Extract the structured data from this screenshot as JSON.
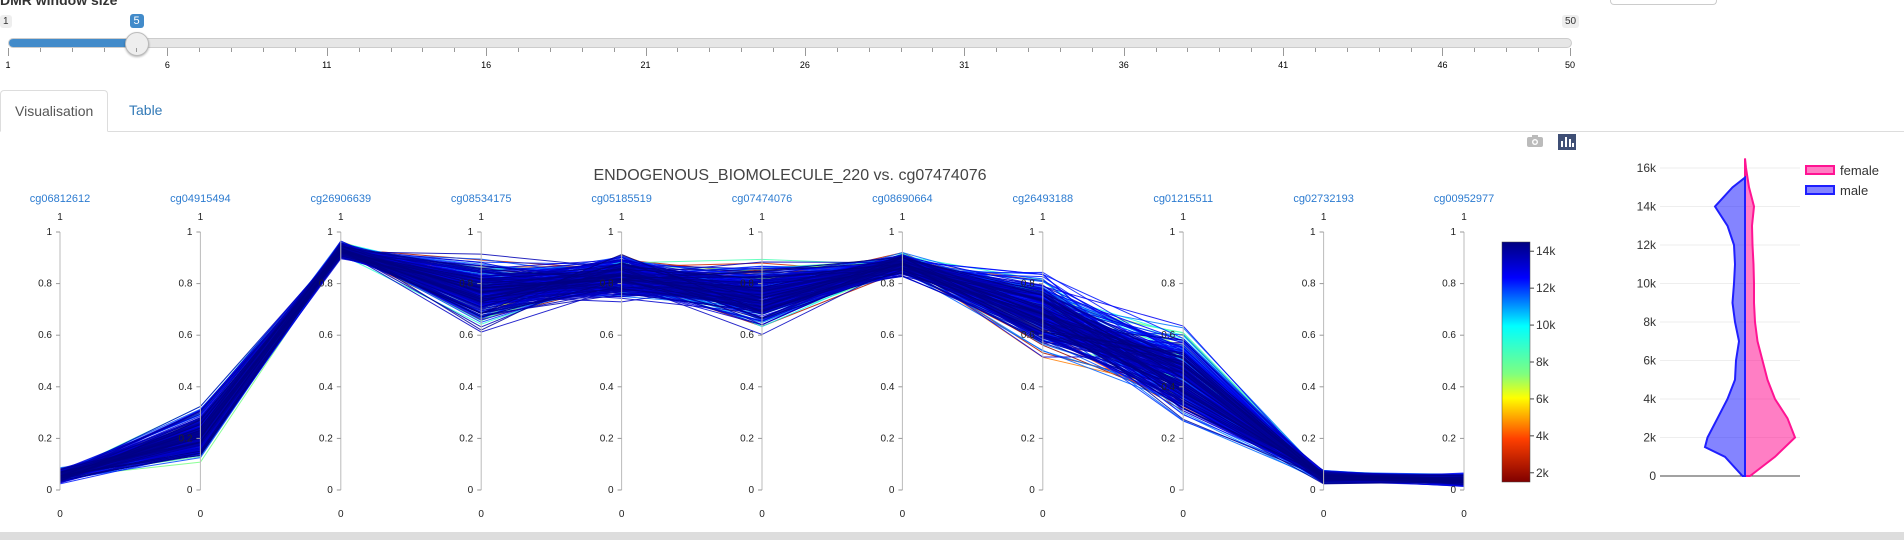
{
  "slider": {
    "label": "DMR window size",
    "min_label": "1",
    "max_label": "50",
    "value": 5,
    "min": 1,
    "max": 50,
    "ticks": [
      "1",
      "6",
      "11",
      "16",
      "21",
      "26",
      "31",
      "36",
      "41",
      "46",
      "50"
    ]
  },
  "tabs": [
    {
      "label": "Visualisation",
      "active": true
    },
    {
      "label": "Table",
      "active": false
    }
  ],
  "modebar": {
    "camera_icon": "camera-icon",
    "plotly_icon": "bar-chart-icon"
  },
  "colors": {
    "accent": "#428bca",
    "tab_link": "#337ab7",
    "female": "#ff1493",
    "male": "#1f1fff"
  },
  "chart_data": [
    {
      "type": "parcoords",
      "title": "ENDOGENOUS_BIOMOLECULE_220 vs. cg07474076",
      "dimensions": [
        "cg06812612",
        "cg04915494",
        "cg26906639",
        "cg08534175",
        "cg05185519",
        "cg07474076",
        "cg08690664",
        "cg26493188",
        "cg01215511",
        "cg02732193",
        "cg00952977"
      ],
      "axis_range": [
        0,
        1
      ],
      "axis_ticks": [
        "0",
        "0.2",
        "0.4",
        "0.6",
        "0.8",
        "1"
      ],
      "axis_top_labels": [
        "1",
        "1",
        "1",
        "1",
        "1",
        "1",
        "1",
        "1",
        "1",
        "1",
        "1"
      ],
      "axis_bottom_labels": [
        "0",
        "0",
        "0",
        "0",
        "0",
        "0",
        "0",
        "0",
        "0",
        "0",
        "0"
      ],
      "typical_profile": [
        0.06,
        0.22,
        0.95,
        0.8,
        0.82,
        0.8,
        0.9,
        0.65,
        0.45,
        0.04,
        0.03
      ],
      "profile_low": [
        0.02,
        0.09,
        0.89,
        0.6,
        0.72,
        0.58,
        0.82,
        0.48,
        0.22,
        0.02,
        0.01
      ],
      "profile_high": [
        0.09,
        0.34,
        0.97,
        0.93,
        0.93,
        0.92,
        0.93,
        0.9,
        0.66,
        0.08,
        0.07
      ],
      "colorscale": "jet-reversed",
      "colorbar_ticks": [
        "14k",
        "12k",
        "10k",
        "8k",
        "6k",
        "4k",
        "2k"
      ],
      "colorbar_range": [
        1500,
        14500
      ]
    },
    {
      "type": "violin",
      "y_ticks": [
        "16k",
        "14k",
        "12k",
        "10k",
        "8k",
        "6k",
        "4k",
        "2k",
        "0"
      ],
      "ylim": [
        0,
        16000
      ],
      "legend": [
        "female",
        "male"
      ],
      "series": [
        {
          "name": "female",
          "side": "positive",
          "y": [
            0,
            1000,
            2000,
            3000,
            4000,
            5000,
            6000,
            7000,
            8000,
            9000,
            10000,
            11000,
            12000,
            13000,
            14000,
            15000,
            16000,
            16500
          ],
          "density": [
            0.1,
            0.6,
            1.0,
            0.85,
            0.6,
            0.45,
            0.35,
            0.25,
            0.2,
            0.18,
            0.18,
            0.17,
            0.15,
            0.14,
            0.18,
            0.08,
            0.02,
            0
          ]
        },
        {
          "name": "male",
          "side": "negative",
          "y": [
            0,
            1000,
            1500,
            2000,
            3000,
            4000,
            5000,
            6000,
            7000,
            8000,
            9000,
            10000,
            11000,
            12000,
            13000,
            14000,
            15000,
            15500
          ],
          "density": [
            0.05,
            0.4,
            0.8,
            0.75,
            0.55,
            0.35,
            0.2,
            0.18,
            0.12,
            0.2,
            0.25,
            0.22,
            0.2,
            0.22,
            0.35,
            0.6,
            0.25,
            0
          ]
        }
      ]
    }
  ]
}
